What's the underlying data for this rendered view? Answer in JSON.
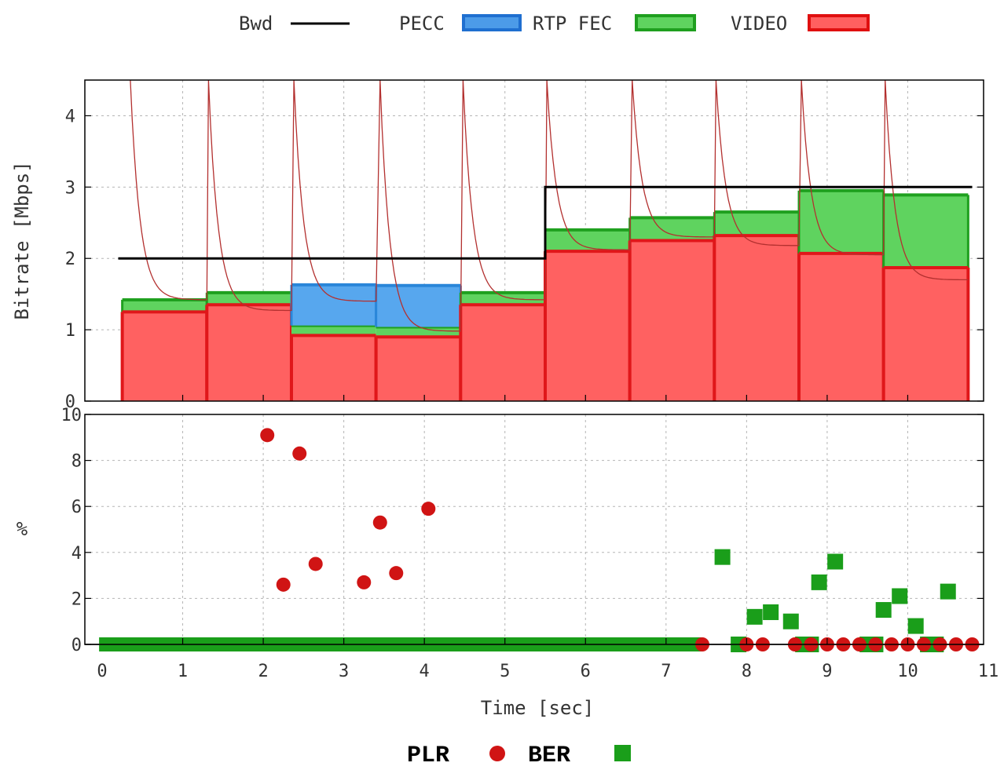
{
  "legend_top": [
    {
      "label": "Bwd",
      "kind": "line",
      "color": "#000000"
    },
    {
      "label": "PECC",
      "kind": "box",
      "color": "#4c9be8",
      "stroke": "#1f6fd0"
    },
    {
      "label": "RTP FEC",
      "kind": "box",
      "color": "#5fd35f",
      "stroke": "#1f9f1f"
    },
    {
      "label": "VIDEO",
      "kind": "box",
      "color": "#ff6060",
      "stroke": "#e01010"
    }
  ],
  "legend_bottom": [
    {
      "label": "PLR",
      "marker": "circle",
      "color": "#d01414"
    },
    {
      "label": "BER",
      "marker": "square",
      "color": "#1a9e1a"
    }
  ],
  "colors": {
    "video": "#ff6161",
    "video_edge": "#e0171a",
    "fec": "#5fd35f",
    "fec_edge": "#1fa01f",
    "pecc": "#57a7ee",
    "pecc_edge": "#2a86d9",
    "bwd": "#000000",
    "inst": "#b3302f",
    "plr": "#d01414",
    "ber": "#1a9e1a",
    "grid": "#b5b5b5"
  },
  "chart_data": [
    {
      "type": "area",
      "ylabel": "Bitrate [Mbps]",
      "xlim": [
        0,
        11
      ],
      "ylim": [
        0,
        4.5
      ],
      "yticks": [
        "0",
        "1",
        "2",
        "3",
        "4"
      ],
      "bwd": {
        "name": "Bwd",
        "points": [
          [
            0.2,
            2.0
          ],
          [
            5.5,
            2.0
          ],
          [
            5.5,
            3.0
          ],
          [
            10.8,
            3.0
          ]
        ]
      },
      "segments": [
        {
          "x0": 0.25,
          "x1": 1.3,
          "video": 1.25,
          "pecc": 0.0,
          "fec": 0.17
        },
        {
          "x0": 1.3,
          "x1": 2.35,
          "video": 1.35,
          "pecc": 0.0,
          "fec": 0.17
        },
        {
          "x0": 2.35,
          "x1": 3.4,
          "video": 0.92,
          "pecc": 0.57,
          "fec": 0.14
        },
        {
          "x0": 3.4,
          "x1": 4.45,
          "video": 0.9,
          "pecc": 0.58,
          "fec": 0.14
        },
        {
          "x0": 4.45,
          "x1": 5.5,
          "video": 1.35,
          "pecc": 0.0,
          "fec": 0.17
        },
        {
          "x0": 5.5,
          "x1": 6.55,
          "video": 2.1,
          "pecc": 0.0,
          "fec": 0.3
        },
        {
          "x0": 6.55,
          "x1": 7.6,
          "video": 2.25,
          "pecc": 0.0,
          "fec": 0.32
        },
        {
          "x0": 7.6,
          "x1": 8.65,
          "video": 2.32,
          "pecc": 0.0,
          "fec": 0.33
        },
        {
          "x0": 8.65,
          "x1": 9.7,
          "video": 2.07,
          "pecc": 0.0,
          "fec": 0.88
        },
        {
          "x0": 9.7,
          "x1": 10.75,
          "video": 1.87,
          "pecc": 0.0,
          "fec": 1.02
        }
      ],
      "instantaneous_peaks": [
        0.35,
        1.32,
        2.38,
        3.45,
        4.48,
        5.52,
        6.58,
        7.62,
        8.68,
        9.72
      ],
      "instantaneous_baseline": [
        1.42,
        1.27,
        1.4,
        0.98,
        1.42,
        2.12,
        2.3,
        2.18,
        2.05,
        1.7
      ]
    },
    {
      "type": "scatter",
      "xlabel": "Time [sec]",
      "ylabel": "%",
      "xlim": [
        0,
        11
      ],
      "ylim": [
        0,
        10
      ],
      "xticks": [
        "0",
        "1",
        "2",
        "3",
        "4",
        "5",
        "6",
        "7",
        "8",
        "9",
        "10",
        "11"
      ],
      "yticks": [
        "0",
        "2",
        "4",
        "6",
        "8",
        "10"
      ],
      "series": [
        {
          "name": "PLR",
          "marker": "circle",
          "points": [
            [
              2.05,
              9.1
            ],
            [
              2.45,
              8.3
            ],
            [
              2.25,
              2.6
            ],
            [
              2.65,
              3.5
            ],
            [
              3.25,
              2.7
            ],
            [
              3.45,
              5.3
            ],
            [
              3.65,
              3.1
            ],
            [
              4.05,
              5.9
            ],
            [
              7.45,
              0
            ],
            [
              8.0,
              0
            ],
            [
              8.2,
              0
            ],
            [
              8.6,
              0
            ],
            [
              8.8,
              0
            ],
            [
              9.0,
              0
            ],
            [
              9.2,
              0
            ],
            [
              9.4,
              0
            ],
            [
              9.6,
              0
            ],
            [
              9.8,
              0
            ],
            [
              10.0,
              0
            ],
            [
              10.2,
              0
            ],
            [
              10.4,
              0
            ],
            [
              10.6,
              0
            ],
            [
              10.8,
              0
            ]
          ]
        },
        {
          "name": "BER",
          "marker": "square",
          "zero_run": [
            0.05,
            7.4
          ],
          "points": [
            [
              7.7,
              3.8
            ],
            [
              8.1,
              1.2
            ],
            [
              8.3,
              1.4
            ],
            [
              8.55,
              1.0
            ],
            [
              8.9,
              2.7
            ],
            [
              9.1,
              3.6
            ],
            [
              9.7,
              1.5
            ],
            [
              9.9,
              2.1
            ],
            [
              10.1,
              0.8
            ],
            [
              10.5,
              2.3
            ],
            [
              7.9,
              0
            ],
            [
              8.7,
              0
            ],
            [
              8.8,
              0
            ],
            [
              9.5,
              0
            ],
            [
              9.6,
              0
            ],
            [
              10.25,
              0
            ],
            [
              10.35,
              0
            ]
          ]
        }
      ]
    }
  ]
}
